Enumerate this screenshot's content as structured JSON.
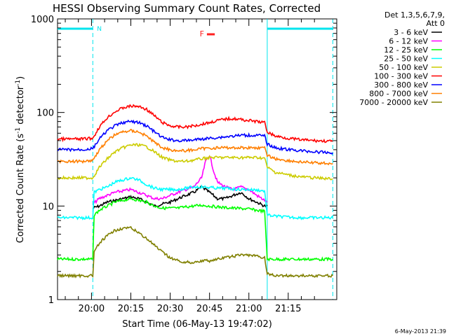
{
  "chart_data": {
    "type": "line",
    "title": "HESSI Observing Summary Count Rates, Corrected",
    "xlabel": "Start Time (06-May-13 19:47:02)",
    "ylabel_main": "Corrected Count Rate (s",
    "ylabel_sup1": "-1",
    "ylabel_mid": " detector",
    "ylabel_sup2": "-1",
    "ylabel_end": ")",
    "y_scale": "log",
    "ylim": [
      1,
      1000
    ],
    "y_ticks": [
      1,
      10,
      100,
      1000
    ],
    "y_tick_labels": [
      "1",
      "10",
      "100",
      "1000"
    ],
    "xlim_minutes": [
      -12.95,
      93.5
    ],
    "x_ticks_minutes": [
      0,
      15,
      30,
      45,
      60,
      75
    ],
    "x_tick_labels": [
      "20:00",
      "20:15",
      "20:30",
      "20:45",
      "21:00",
      "21:15"
    ],
    "legend_header": [
      "Det 1,3,5,6,7,9,",
      "Att 0"
    ],
    "legend_placement": "right",
    "markers": [
      {
        "label": "N",
        "start_min": -12.95,
        "end_min": 0.5,
        "color": "#00e5ee"
      },
      {
        "label": "F",
        "start_min": 44.0,
        "end_min": 47.0,
        "color": "#ff2020"
      }
    ],
    "night_bars": [
      {
        "start_min": -12.95,
        "end_min": 0.5
      },
      {
        "start_min": 67.0,
        "end_min": 92.0
      }
    ],
    "footer_stamp": "6-May-2013 21:39",
    "series": [
      {
        "name": "3 - 6 keV",
        "color": "#000000",
        "x": [
          0.5,
          3,
          6,
          9,
          12,
          15,
          18,
          21,
          24,
          27,
          30,
          33,
          36,
          39,
          42,
          45,
          48,
          51,
          54,
          57,
          60,
          63,
          66,
          67
        ],
        "y": [
          9.5,
          10,
          11,
          11.5,
          12,
          12.5,
          12,
          11,
          10,
          10.5,
          11,
          12,
          13,
          14,
          16,
          14,
          12,
          12,
          13,
          14,
          12,
          11,
          10,
          10
        ]
      },
      {
        "name": "6 - 12 keV",
        "color": "#ff00ff",
        "x": [
          0.5,
          3,
          6,
          9,
          12,
          15,
          18,
          21,
          24,
          27,
          30,
          33,
          36,
          39,
          42,
          43.5,
          45,
          46.5,
          48,
          51,
          54,
          57,
          60,
          63,
          66,
          67
        ],
        "y": [
          10.5,
          12,
          13,
          14,
          14.5,
          15,
          14,
          13,
          12,
          12,
          13,
          14,
          15,
          16,
          20,
          30,
          35,
          24,
          18,
          16,
          15,
          16,
          15,
          13,
          11.5,
          11
        ]
      },
      {
        "name": "12 - 25 keV",
        "color": "#00ff00",
        "x": [
          -12.95,
          -8,
          -4,
          0.5,
          1,
          3,
          6,
          9,
          12,
          15,
          18,
          21,
          24,
          27,
          30,
          33,
          36,
          39,
          42,
          45,
          48,
          51,
          54,
          57,
          60,
          63,
          66,
          67,
          70,
          75,
          80,
          85,
          92
        ],
        "y": [
          2.7,
          2.7,
          2.7,
          2.7,
          8,
          9,
          10,
          11,
          11.5,
          12,
          11.5,
          11,
          10,
          9.5,
          9.5,
          9.5,
          9.8,
          10,
          10.2,
          10,
          9.8,
          9.6,
          9.5,
          9.4,
          9.3,
          9,
          8.8,
          2.7,
          2.7,
          2.7,
          2.7,
          2.7,
          2.7
        ]
      },
      {
        "name": "25 - 50 keV",
        "color": "#00ffff",
        "x": [
          -12.95,
          -8,
          -4,
          0.5,
          1,
          3,
          6,
          9,
          12,
          15,
          18,
          21,
          24,
          27,
          30,
          33,
          36,
          39,
          42,
          45,
          48,
          51,
          54,
          57,
          60,
          63,
          66,
          67,
          70,
          75,
          80,
          85,
          92
        ],
        "y": [
          7.5,
          7.5,
          7.5,
          7.5,
          14,
          15,
          16,
          18,
          19,
          20,
          19,
          17,
          15.5,
          15,
          15,
          15,
          15.5,
          16,
          16,
          15.8,
          15.5,
          15.5,
          15.2,
          15,
          15,
          14.8,
          14.5,
          8,
          7.8,
          7.6,
          7.5,
          7.5,
          7.5
        ]
      },
      {
        "name": "50 - 100 keV",
        "color": "#cccc00",
        "x": [
          -12.95,
          -8,
          -4,
          0.5,
          3,
          6,
          9,
          12,
          15,
          18,
          21,
          24,
          27,
          30,
          33,
          36,
          39,
          42,
          45,
          48,
          51,
          54,
          57,
          60,
          63,
          66,
          67,
          70,
          75,
          80,
          85,
          92
        ],
        "y": [
          20,
          20,
          20,
          20,
          26,
          32,
          38,
          42,
          45,
          45,
          43,
          38,
          33,
          31,
          30,
          30,
          31,
          32,
          33,
          33,
          33,
          33,
          33,
          33,
          33,
          32.5,
          26,
          23,
          21.5,
          20.5,
          20,
          19.5
        ]
      },
      {
        "name": "100 - 300 keV",
        "color": "#ff0000",
        "x": [
          -12.95,
          -8,
          -4,
          0.5,
          3,
          6,
          9,
          12,
          15,
          18,
          21,
          24,
          27,
          30,
          33,
          36,
          39,
          42,
          45,
          48,
          51,
          54,
          57,
          60,
          63,
          66,
          67,
          70,
          75,
          80,
          85,
          92
        ],
        "y": [
          52,
          52,
          52,
          53,
          70,
          88,
          102,
          112,
          117,
          116,
          108,
          92,
          78,
          72,
          70,
          70,
          72,
          75,
          78,
          82,
          85,
          86,
          84,
          82,
          80,
          78,
          62,
          56,
          53,
          51,
          50,
          49
        ]
      },
      {
        "name": "300 - 800 keV",
        "color": "#0000ff",
        "x": [
          -12.95,
          -8,
          -4,
          0.5,
          3,
          6,
          9,
          12,
          15,
          18,
          21,
          24,
          27,
          30,
          33,
          36,
          39,
          42,
          45,
          48,
          51,
          54,
          57,
          60,
          63,
          66,
          67,
          70,
          75,
          80,
          85,
          92
        ],
        "y": [
          40,
          40,
          40,
          41,
          52,
          64,
          72,
          78,
          80,
          78,
          72,
          62,
          54,
          51,
          50,
          50,
          51,
          52,
          53,
          54,
          55,
          56,
          57,
          57,
          57,
          56,
          46,
          42,
          40,
          39,
          38,
          37
        ]
      },
      {
        "name": "800 - 7000 keV",
        "color": "#ff7f00",
        "x": [
          -12.95,
          -8,
          -4,
          0.5,
          3,
          6,
          9,
          12,
          15,
          18,
          21,
          24,
          27,
          30,
          33,
          36,
          39,
          42,
          45,
          48,
          51,
          54,
          57,
          60,
          63,
          66,
          67,
          70,
          75,
          80,
          85,
          92
        ],
        "y": [
          30,
          30,
          30,
          31,
          40,
          50,
          58,
          62,
          64,
          62,
          56,
          48,
          42,
          40,
          39,
          39,
          40,
          41,
          41.5,
          42,
          42,
          42,
          42,
          42,
          42,
          41.5,
          35,
          32,
          30.5,
          29.5,
          29,
          28.5
        ]
      },
      {
        "name": "7000 - 20000 keV",
        "color": "#808000",
        "x": [
          -12.95,
          -8,
          -4,
          0.5,
          1,
          3,
          6,
          9,
          12,
          15,
          18,
          21,
          24,
          27,
          30,
          33,
          36,
          39,
          42,
          45,
          48,
          51,
          54,
          57,
          60,
          63,
          66,
          67,
          70,
          75,
          80,
          85,
          92
        ],
        "y": [
          1.8,
          1.8,
          1.8,
          1.8,
          3.2,
          4,
          4.8,
          5.5,
          5.8,
          5.8,
          5.2,
          4.5,
          3.8,
          3.2,
          2.8,
          2.6,
          2.5,
          2.5,
          2.6,
          2.6,
          2.7,
          2.8,
          2.9,
          3.0,
          3.0,
          2.9,
          2.8,
          1.9,
          1.8,
          1.8,
          1.8,
          1.8,
          1.8
        ]
      }
    ]
  }
}
